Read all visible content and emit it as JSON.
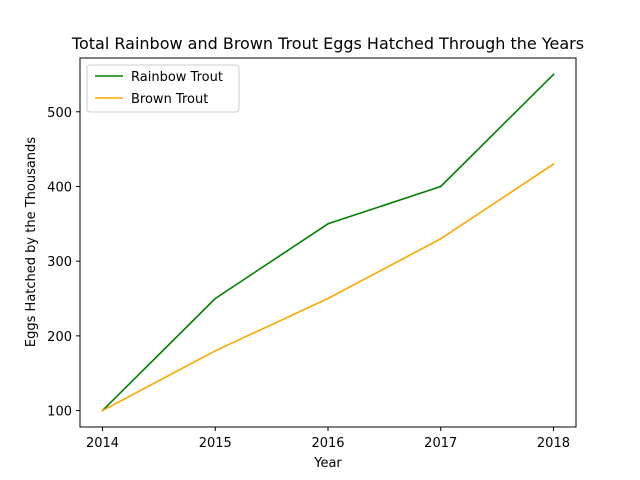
{
  "chart_data": {
    "type": "line",
    "title": "Total Rainbow and Brown Trout Eggs Hatched Through the Years",
    "xlabel": "Year",
    "ylabel": "Eggs Hatched by the Thousands",
    "x": [
      2014,
      2015,
      2016,
      2017,
      2018
    ],
    "x_ticks": [
      "2014",
      "2015",
      "2016",
      "2017",
      "2018"
    ],
    "y_ticks": [
      100,
      200,
      300,
      400,
      500
    ],
    "xlim": [
      2013.8,
      2018.2
    ],
    "ylim": [
      78,
      572
    ],
    "grid": false,
    "legend_position": "top-left",
    "series": [
      {
        "name": "Rainbow Trout",
        "color": "#008000",
        "values": [
          100,
          250,
          350,
          400,
          550
        ]
      },
      {
        "name": "Brown Trout",
        "color": "#ffa500",
        "values": [
          100,
          180,
          250,
          330,
          430
        ]
      }
    ]
  }
}
